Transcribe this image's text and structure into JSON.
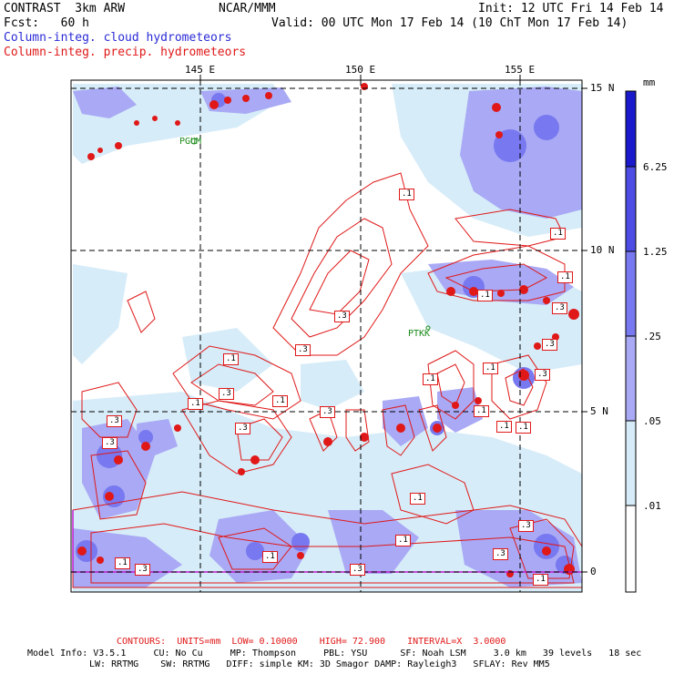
{
  "header": {
    "title": "CONTRAST  3km ARW",
    "org": "NCAR/MMM",
    "init": "Init: 12 UTC Fri 14 Feb 14",
    "fcst": "Fcst:   60 h",
    "valid": "Valid: 00 UTC Mon 17 Feb 14 (10 ChT Mon 17 Feb 14)",
    "field1": "Column-integ. cloud hydrometeors",
    "field2": "Column-integ. precip. hydrometeors"
  },
  "axes": {
    "lon_labels": [
      "145 E",
      "150 E",
      "155 E"
    ],
    "lat_labels": [
      "15 N",
      "10 N",
      "5 N",
      "0"
    ]
  },
  "stations": [
    "PGUM",
    "PTKK"
  ],
  "contour_labels": [
    ".1",
    ".1",
    ".1",
    ".3",
    ".3",
    ".1",
    ".3",
    ".3",
    ".1",
    ".3",
    ".1",
    ".1",
    ".3",
    ".1",
    ".1",
    ".1",
    ".1",
    ".3",
    ".3",
    ".1",
    ".3",
    ".3",
    ".3",
    ".1",
    ".3",
    ".3",
    ".1",
    ".1",
    ".1",
    ".3",
    ".1"
  ],
  "colorbar": {
    "unit": "mm",
    "labels": [
      "6.25",
      "1.25",
      ".25",
      ".05",
      ".01"
    ],
    "colors": [
      "#1a1acc",
      "#4d4de6",
      "#7878f0",
      "#a9a9f5",
      "#d6ecf8",
      "#ffffff"
    ]
  },
  "footer": {
    "contours": "CONTOURS:  UNITS=mm  LOW= 0.10000    HIGH= 72.900    INTERVAL=X  3.0000",
    "model1": "Model Info: V3.5.1     CU: No Cu     MP: Thompson     PBL: YSU      SF: Noah LSM     3.0 km   39 levels   18 sec",
    "model2": "LW: RRTMG    SW: RRTMG   DIFF: simple KM: 3D Smagor DAMP: Rayleigh3   SFLAY: Rev MM5"
  },
  "colors": {
    "contour": "#e01818",
    "precip_fill": "#e01818",
    "cloud_light": "#d6ecf8",
    "cloud_mid": "#a9a9f5",
    "cloud_dark": "#7878f0",
    "station": "#1a8a1a"
  }
}
